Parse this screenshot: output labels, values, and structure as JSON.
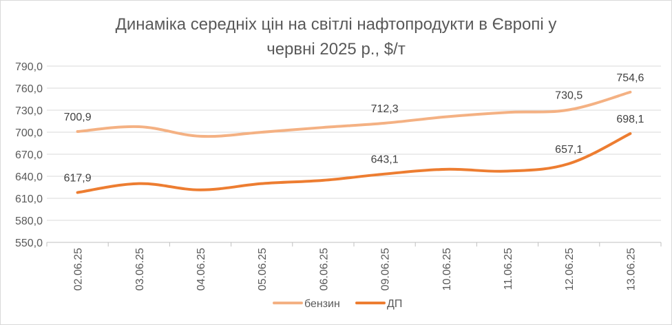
{
  "chart_data": {
    "type": "line",
    "title_line1": "Динаміка середніх цін на світлі нафтопродукти в Європі у",
    "title_line2": "червні 2025 р., $/т",
    "categories": [
      "02.06.25",
      "03.06.25",
      "04.06.25",
      "05.06.25",
      "06.06.25",
      "09.06.25",
      "10.06.25",
      "11.06.25",
      "12.06.25",
      "13.06.25"
    ],
    "series": [
      {
        "name": "бензин",
        "color": "#F4B183",
        "values": [
          700.9,
          707.5,
          694.5,
          700.0,
          706.5,
          712.3,
          721.0,
          727.0,
          730.5,
          754.6
        ],
        "labels": [
          "700,9",
          "",
          "",
          "",
          "",
          "712,3",
          "",
          "",
          "730,5",
          "754,6"
        ]
      },
      {
        "name": "ДП",
        "color": "#ED7D31",
        "values": [
          617.9,
          630.0,
          621.5,
          630.0,
          634.5,
          643.1,
          649.5,
          647.0,
          657.1,
          698.1
        ],
        "labels": [
          "617,9",
          "",
          "",
          "",
          "",
          "643,1",
          "",
          "",
          "657,1",
          "698,1"
        ]
      }
    ],
    "ylim": [
      550,
      790
    ],
    "yticks": [
      "550,0",
      "580,0",
      "610,0",
      "640,0",
      "670,0",
      "700,0",
      "730,0",
      "760,0",
      "790,0"
    ],
    "grid": true,
    "legend": "bottom"
  }
}
